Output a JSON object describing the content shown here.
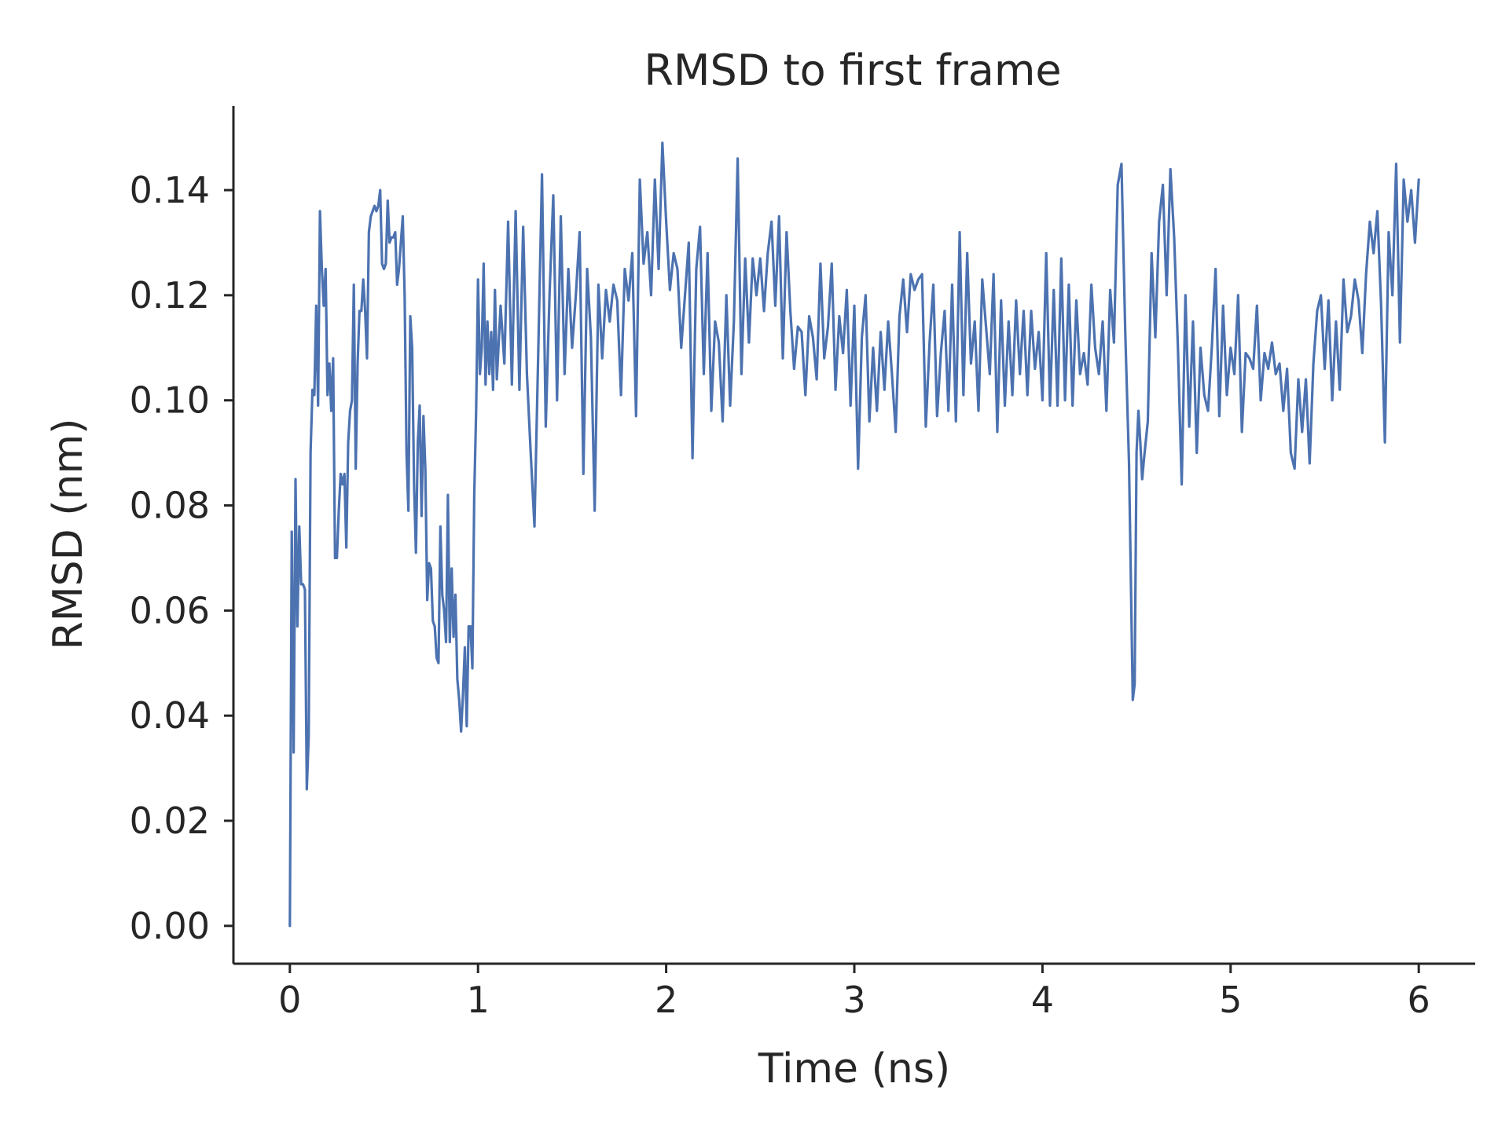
{
  "chart_data": {
    "type": "line",
    "title": "RMSD to first frame",
    "xlabel": "Time (ns)",
    "ylabel": "RMSD (nm)",
    "xlim": [
      -0.3,
      6.3
    ],
    "ylim": [
      -0.0072,
      0.156
    ],
    "xticks": [
      0,
      1,
      2,
      3,
      4,
      5,
      6
    ],
    "xtick_labels": [
      "0",
      "1",
      "2",
      "3",
      "4",
      "5",
      "6"
    ],
    "yticks": [
      0.0,
      0.02,
      0.04,
      0.06,
      0.08,
      0.1,
      0.12,
      0.14
    ],
    "ytick_labels": [
      "0.00",
      "0.02",
      "0.04",
      "0.06",
      "0.08",
      "0.10",
      "0.12",
      "0.14"
    ],
    "grid": false,
    "colors": {
      "series": "#4c72b0",
      "axes": "#262626"
    },
    "series": [
      {
        "x": [
          0.0,
          0.01,
          0.02,
          0.03,
          0.04,
          0.05,
          0.06,
          0.07,
          0.08,
          0.09,
          0.1,
          0.11,
          0.12,
          0.13,
          0.14,
          0.15,
          0.16,
          0.17,
          0.18,
          0.19,
          0.2,
          0.21,
          0.22,
          0.23,
          0.24,
          0.25,
          0.26,
          0.27,
          0.28,
          0.29,
          0.3,
          0.31,
          0.32,
          0.33,
          0.34,
          0.35,
          0.36,
          0.37,
          0.38,
          0.39,
          0.4,
          0.41,
          0.42,
          0.43,
          0.44,
          0.45,
          0.46,
          0.47,
          0.48,
          0.49,
          0.5,
          0.51,
          0.52,
          0.53,
          0.54,
          0.55,
          0.56,
          0.57,
          0.58,
          0.59,
          0.6,
          0.61,
          0.62,
          0.63,
          0.64,
          0.65,
          0.66,
          0.67,
          0.68,
          0.69,
          0.7,
          0.71,
          0.72,
          0.73,
          0.74,
          0.75,
          0.76,
          0.77,
          0.78,
          0.79,
          0.8,
          0.81,
          0.82,
          0.83,
          0.84,
          0.85,
          0.86,
          0.87,
          0.88,
          0.89,
          0.9,
          0.91,
          0.92,
          0.93,
          0.94,
          0.95,
          0.96,
          0.97,
          0.98,
          0.99,
          1.0,
          1.01,
          1.02,
          1.03,
          1.04,
          1.05,
          1.06,
          1.07,
          1.08,
          1.09,
          1.1,
          1.12,
          1.14,
          1.16,
          1.18,
          1.2,
          1.22,
          1.24,
          1.26,
          1.28,
          1.3,
          1.32,
          1.34,
          1.36,
          1.38,
          1.4,
          1.42,
          1.44,
          1.46,
          1.48,
          1.5,
          1.52,
          1.54,
          1.56,
          1.58,
          1.6,
          1.62,
          1.64,
          1.66,
          1.68,
          1.7,
          1.72,
          1.74,
          1.76,
          1.78,
          1.8,
          1.82,
          1.84,
          1.86,
          1.88,
          1.9,
          1.92,
          1.94,
          1.96,
          1.98,
          2.0,
          2.02,
          2.04,
          2.06,
          2.08,
          2.1,
          2.12,
          2.14,
          2.16,
          2.18,
          2.2,
          2.22,
          2.24,
          2.26,
          2.28,
          2.3,
          2.32,
          2.34,
          2.36,
          2.38,
          2.4,
          2.42,
          2.44,
          2.46,
          2.48,
          2.5,
          2.52,
          2.54,
          2.56,
          2.58,
          2.6,
          2.62,
          2.64,
          2.66,
          2.68,
          2.7,
          2.72,
          2.74,
          2.76,
          2.78,
          2.8,
          2.82,
          2.84,
          2.86,
          2.88,
          2.9,
          2.92,
          2.94,
          2.96,
          2.98,
          3.0,
          3.02,
          3.04,
          3.06,
          3.08,
          3.1,
          3.12,
          3.14,
          3.16,
          3.18,
          3.2,
          3.22,
          3.24,
          3.26,
          3.28,
          3.3,
          3.32,
          3.34,
          3.36,
          3.38,
          3.4,
          3.42,
          3.44,
          3.46,
          3.48,
          3.5,
          3.52,
          3.54,
          3.56,
          3.58,
          3.6,
          3.62,
          3.64,
          3.66,
          3.68,
          3.7,
          3.72,
          3.74,
          3.76,
          3.78,
          3.8,
          3.82,
          3.84,
          3.86,
          3.88,
          3.9,
          3.92,
          3.94,
          3.96,
          3.98,
          4.0,
          4.02,
          4.04,
          4.06,
          4.08,
          4.1,
          4.12,
          4.14,
          4.16,
          4.18,
          4.2,
          4.22,
          4.24,
          4.26,
          4.28,
          4.3,
          4.32,
          4.34,
          4.36,
          4.38,
          4.4,
          4.42,
          4.44,
          4.46,
          4.48,
          4.49,
          4.5,
          4.51,
          4.52,
          4.53,
          4.54,
          4.56,
          4.58,
          4.6,
          4.62,
          4.64,
          4.66,
          4.68,
          4.7,
          4.72,
          4.74,
          4.76,
          4.78,
          4.8,
          4.82,
          4.84,
          4.86,
          4.88,
          4.9,
          4.92,
          4.94,
          4.96,
          4.98,
          5.0,
          5.02,
          5.04,
          5.06,
          5.08,
          5.1,
          5.12,
          5.14,
          5.16,
          5.18,
          5.2,
          5.22,
          5.24,
          5.26,
          5.28,
          5.3,
          5.32,
          5.34,
          5.36,
          5.38,
          5.4,
          5.42,
          5.44,
          5.46,
          5.48,
          5.5,
          5.52,
          5.54,
          5.56,
          5.58,
          5.6,
          5.62,
          5.64,
          5.66,
          5.68,
          5.7,
          5.72,
          5.74,
          5.76,
          5.78,
          5.8,
          5.82,
          5.84,
          5.86,
          5.88,
          5.9,
          5.92,
          5.94,
          5.96,
          5.98,
          6.0
        ],
        "y": [
          0.0,
          0.075,
          0.033,
          0.085,
          0.057,
          0.076,
          0.065,
          0.065,
          0.064,
          0.026,
          0.036,
          0.09,
          0.102,
          0.101,
          0.118,
          0.099,
          0.136,
          0.125,
          0.118,
          0.125,
          0.101,
          0.107,
          0.098,
          0.108,
          0.07,
          0.07,
          0.079,
          0.086,
          0.084,
          0.086,
          0.072,
          0.092,
          0.098,
          0.1,
          0.122,
          0.087,
          0.107,
          0.117,
          0.117,
          0.123,
          0.117,
          0.108,
          0.132,
          0.135,
          0.136,
          0.137,
          0.136,
          0.137,
          0.14,
          0.126,
          0.125,
          0.126,
          0.138,
          0.13,
          0.131,
          0.131,
          0.132,
          0.122,
          0.125,
          0.13,
          0.135,
          0.12,
          0.09,
          0.079,
          0.116,
          0.11,
          0.084,
          0.071,
          0.092,
          0.099,
          0.078,
          0.097,
          0.087,
          0.062,
          0.069,
          0.068,
          0.058,
          0.057,
          0.051,
          0.05,
          0.076,
          0.063,
          0.06,
          0.054,
          0.082,
          0.054,
          0.068,
          0.055,
          0.063,
          0.047,
          0.043,
          0.037,
          0.044,
          0.053,
          0.038,
          0.057,
          0.057,
          0.049,
          0.082,
          0.098,
          0.123,
          0.105,
          0.11,
          0.126,
          0.103,
          0.115,
          0.105,
          0.113,
          0.102,
          0.121,
          0.104,
          0.118,
          0.107,
          0.134,
          0.103,
          0.136,
          0.102,
          0.133,
          0.105,
          0.09,
          0.076,
          0.109,
          0.143,
          0.095,
          0.12,
          0.139,
          0.1,
          0.135,
          0.105,
          0.125,
          0.11,
          0.12,
          0.132,
          0.086,
          0.125,
          0.112,
          0.079,
          0.122,
          0.108,
          0.121,
          0.115,
          0.122,
          0.119,
          0.101,
          0.125,
          0.119,
          0.128,
          0.097,
          0.142,
          0.126,
          0.132,
          0.12,
          0.142,
          0.125,
          0.149,
          0.134,
          0.121,
          0.128,
          0.125,
          0.11,
          0.12,
          0.13,
          0.089,
          0.125,
          0.133,
          0.105,
          0.128,
          0.098,
          0.115,
          0.111,
          0.096,
          0.12,
          0.099,
          0.115,
          0.146,
          0.105,
          0.127,
          0.111,
          0.127,
          0.12,
          0.127,
          0.117,
          0.128,
          0.134,
          0.118,
          0.135,
          0.108,
          0.132,
          0.117,
          0.106,
          0.114,
          0.113,
          0.101,
          0.116,
          0.112,
          0.104,
          0.126,
          0.108,
          0.114,
          0.126,
          0.102,
          0.116,
          0.109,
          0.121,
          0.099,
          0.118,
          0.087,
          0.112,
          0.12,
          0.096,
          0.11,
          0.098,
          0.113,
          0.102,
          0.115,
          0.105,
          0.094,
          0.116,
          0.123,
          0.113,
          0.124,
          0.121,
          0.123,
          0.124,
          0.095,
          0.111,
          0.122,
          0.097,
          0.109,
          0.117,
          0.098,
          0.122,
          0.096,
          0.132,
          0.101,
          0.128,
          0.107,
          0.115,
          0.098,
          0.123,
          0.114,
          0.105,
          0.124,
          0.094,
          0.119,
          0.099,
          0.115,
          0.101,
          0.119,
          0.105,
          0.117,
          0.101,
          0.117,
          0.106,
          0.113,
          0.1,
          0.128,
          0.099,
          0.121,
          0.099,
          0.127,
          0.1,
          0.122,
          0.099,
          0.119,
          0.105,
          0.109,
          0.103,
          0.122,
          0.11,
          0.105,
          0.115,
          0.098,
          0.121,
          0.111,
          0.141,
          0.145,
          0.113,
          0.088,
          0.043,
          0.046,
          0.09,
          0.098,
          0.092,
          0.085,
          0.089,
          0.096,
          0.128,
          0.112,
          0.134,
          0.141,
          0.12,
          0.144,
          0.131,
          0.11,
          0.084,
          0.12,
          0.095,
          0.115,
          0.09,
          0.11,
          0.101,
          0.098,
          0.11,
          0.125,
          0.097,
          0.118,
          0.101,
          0.11,
          0.105,
          0.12,
          0.094,
          0.109,
          0.108,
          0.106,
          0.118,
          0.1,
          0.109,
          0.106,
          0.111,
          0.105,
          0.107,
          0.098,
          0.106,
          0.09,
          0.087,
          0.104,
          0.094,
          0.104,
          0.088,
          0.107,
          0.117,
          0.12,
          0.106,
          0.119,
          0.1,
          0.115,
          0.102,
          0.123,
          0.113,
          0.116,
          0.123,
          0.119,
          0.109,
          0.124,
          0.134,
          0.128,
          0.136,
          0.118,
          0.092,
          0.132,
          0.12,
          0.145,
          0.111,
          0.142,
          0.134,
          0.14,
          0.13,
          0.142
        ]
      }
    ]
  }
}
